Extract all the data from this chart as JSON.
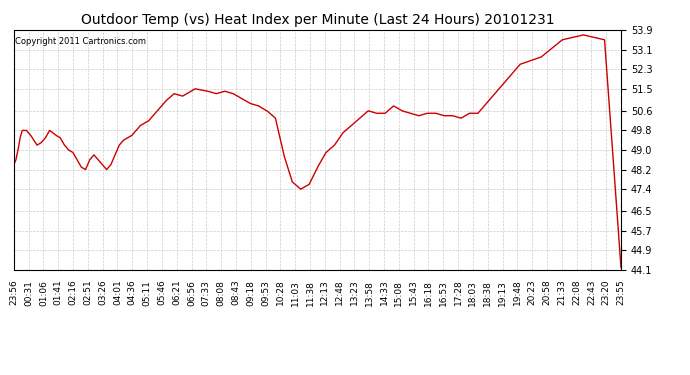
{
  "title": "Outdoor Temp (vs) Heat Index per Minute (Last 24 Hours) 20101231",
  "copyright": "Copyright 2011 Cartronics.com",
  "line_color": "#cc0000",
  "bg_color": "#ffffff",
  "grid_color": "#cccccc",
  "yticks": [
    44.1,
    44.9,
    45.7,
    46.5,
    47.4,
    48.2,
    49.0,
    49.8,
    50.6,
    51.5,
    52.3,
    53.1,
    53.9
  ],
  "ymin": 44.1,
  "ymax": 53.9,
  "xtick_labels": [
    "23:56",
    "00:31",
    "01:06",
    "01:41",
    "02:16",
    "02:51",
    "03:26",
    "04:01",
    "04:36",
    "05:11",
    "05:46",
    "06:21",
    "06:56",
    "07:33",
    "08:08",
    "08:43",
    "09:18",
    "09:53",
    "10:28",
    "11:03",
    "11:38",
    "12:13",
    "12:48",
    "13:23",
    "13:58",
    "14:33",
    "15:08",
    "15:43",
    "16:18",
    "16:53",
    "17:28",
    "18:03",
    "18:38",
    "19:13",
    "19:48",
    "20:23",
    "20:58",
    "21:33",
    "22:08",
    "22:43",
    "23:20",
    "23:55"
  ],
  "curve_keypoints_x": [
    0,
    5,
    10,
    15,
    20,
    30,
    40,
    55,
    65,
    75,
    85,
    100,
    110,
    120,
    130,
    140,
    150,
    160,
    170,
    180,
    190,
    200,
    210,
    220,
    230,
    240,
    250,
    260,
    280,
    300,
    320,
    340,
    360,
    380,
    400,
    430,
    460,
    480,
    500,
    520,
    540,
    560,
    580,
    600,
    620,
    640,
    660,
    680,
    700,
    720,
    740,
    760,
    780,
    800,
    820,
    840,
    860,
    880,
    900,
    920,
    940,
    960,
    980,
    1000,
    1020,
    1040,
    1060,
    1080,
    1100,
    1150,
    1200,
    1250,
    1300,
    1350,
    1400,
    1439
  ],
  "curve_keypoints_y": [
    48.4,
    48.6,
    49.0,
    49.5,
    49.8,
    49.8,
    49.6,
    49.2,
    49.3,
    49.5,
    49.8,
    49.6,
    49.5,
    49.2,
    49.0,
    48.9,
    48.6,
    48.3,
    48.2,
    48.6,
    48.8,
    48.6,
    48.4,
    48.2,
    48.4,
    48.8,
    49.2,
    49.4,
    49.6,
    50.0,
    50.2,
    50.6,
    51.0,
    51.3,
    51.2,
    51.5,
    51.4,
    51.3,
    51.4,
    51.3,
    51.1,
    50.9,
    50.8,
    50.6,
    50.3,
    48.8,
    47.7,
    47.4,
    47.6,
    48.3,
    48.9,
    49.2,
    49.7,
    50.0,
    50.3,
    50.6,
    50.5,
    50.5,
    50.8,
    50.6,
    50.5,
    50.4,
    50.5,
    50.5,
    50.4,
    50.4,
    50.3,
    50.5,
    50.5,
    51.5,
    52.5,
    52.8,
    53.5,
    53.7,
    53.5,
    44.2
  ]
}
